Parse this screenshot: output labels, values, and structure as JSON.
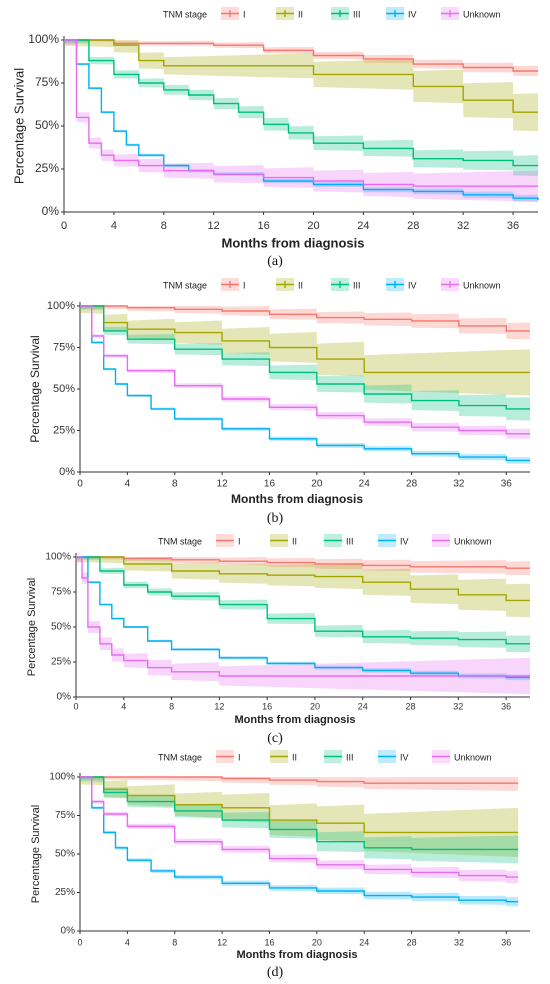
{
  "legend": {
    "title": "TNM stage",
    "items": [
      {
        "label": "I",
        "color": "#f8766d"
      },
      {
        "label": "II",
        "color": "#a3a500"
      },
      {
        "label": "III",
        "color": "#00bf7d"
      },
      {
        "label": "IV",
        "color": "#00b0f6"
      },
      {
        "label": "Unknown",
        "color": "#e76bf3"
      }
    ]
  },
  "chart_data": [
    {
      "type": "line",
      "panel_label": "(a)",
      "xlabel": "Months from diagnosis",
      "ylabel": "Percentage Survival",
      "xlim": [
        0,
        38
      ],
      "ylim": [
        0,
        100
      ],
      "xticks": [
        0,
        4,
        8,
        12,
        16,
        20,
        24,
        28,
        32,
        36
      ],
      "yticks": [
        "0%",
        "25%",
        "50%",
        "75%",
        "100%"
      ],
      "series": [
        {
          "name": "I",
          "x": [
            0,
            4,
            8,
            12,
            16,
            20,
            24,
            28,
            32,
            36,
            38
          ],
          "y": [
            100,
            98,
            98,
            97,
            94,
            91,
            89,
            86,
            84,
            82,
            82
          ],
          "ci_width": 3
        },
        {
          "name": "II",
          "x": [
            0,
            4,
            6,
            8,
            12,
            16,
            20,
            24,
            28,
            32,
            36,
            38
          ],
          "y": [
            100,
            97,
            88,
            85,
            85,
            85,
            80,
            80,
            73,
            65,
            58,
            58
          ],
          "ci_width": 11
        },
        {
          "name": "III",
          "x": [
            0,
            2,
            4,
            6,
            8,
            10,
            12,
            14,
            16,
            18,
            20,
            24,
            28,
            32,
            36,
            38
          ],
          "y": [
            100,
            88,
            80,
            75,
            71,
            68,
            63,
            58,
            51,
            46,
            40,
            37,
            31,
            30,
            27,
            27
          ],
          "ci_width": 6
        },
        {
          "name": "IV",
          "x": [
            0,
            1,
            2,
            3,
            4,
            5,
            6,
            8,
            10,
            12,
            16,
            20,
            24,
            28,
            32,
            36,
            38
          ],
          "y": [
            100,
            86,
            72,
            58,
            47,
            39,
            33,
            27,
            24,
            22,
            18,
            16,
            13,
            12,
            10,
            8,
            7
          ],
          "ci_width": 2
        },
        {
          "name": "Unknown",
          "x": [
            0,
            1,
            2,
            3,
            4,
            6,
            8,
            12,
            16,
            20,
            24,
            28,
            32,
            36,
            38
          ],
          "y": [
            100,
            55,
            40,
            33,
            30,
            27,
            24,
            22,
            20,
            18,
            16,
            15,
            15,
            15,
            15
          ],
          "ci_width": 9
        }
      ]
    },
    {
      "type": "line",
      "panel_label": "(b)",
      "xlabel": "Months from diagnosis",
      "ylabel": "Percentage Survival",
      "xlim": [
        0,
        38
      ],
      "ylim": [
        0,
        100
      ],
      "xticks": [
        0,
        4,
        8,
        12,
        16,
        20,
        24,
        28,
        32,
        36
      ],
      "yticks": [
        "0%",
        "25%",
        "50%",
        "75%",
        "100%"
      ],
      "series": [
        {
          "name": "I",
          "x": [
            0,
            4,
            8,
            12,
            16,
            20,
            24,
            28,
            32,
            36,
            38
          ],
          "y": [
            100,
            99,
            98,
            97,
            95,
            93,
            92,
            91,
            88,
            85,
            85
          ],
          "ci_width": 5
        },
        {
          "name": "II",
          "x": [
            0,
            2,
            4,
            8,
            12,
            16,
            20,
            24,
            28,
            32,
            36,
            38
          ],
          "y": [
            100,
            90,
            86,
            84,
            79,
            75,
            68,
            60,
            60,
            60,
            60,
            60
          ],
          "ci_width": 14
        },
        {
          "name": "III",
          "x": [
            0,
            2,
            4,
            8,
            12,
            16,
            20,
            24,
            28,
            32,
            36,
            38
          ],
          "y": [
            100,
            85,
            80,
            74,
            68,
            60,
            53,
            47,
            43,
            40,
            38,
            38
          ],
          "ci_width": 7
        },
        {
          "name": "IV",
          "x": [
            0,
            1,
            2,
            3,
            4,
            6,
            8,
            12,
            16,
            20,
            24,
            28,
            32,
            36,
            38
          ],
          "y": [
            100,
            78,
            62,
            53,
            46,
            38,
            32,
            26,
            20,
            16,
            14,
            11,
            9,
            7,
            7
          ],
          "ci_width": 2
        },
        {
          "name": "Unknown",
          "x": [
            0,
            1,
            2,
            4,
            8,
            12,
            16,
            20,
            24,
            28,
            32,
            36,
            38
          ],
          "y": [
            100,
            82,
            70,
            61,
            52,
            44,
            39,
            34,
            30,
            27,
            25,
            23,
            23
          ],
          "ci_width": 3
        }
      ]
    },
    {
      "type": "line",
      "panel_label": "(c)",
      "xlabel": "Months from diagnosis",
      "ylabel": "Percentage Survival",
      "xlim": [
        0,
        38
      ],
      "ylim": [
        0,
        100
      ],
      "xticks": [
        0,
        4,
        8,
        12,
        16,
        20,
        24,
        28,
        32,
        36
      ],
      "yticks": [
        "0%",
        "25%",
        "50%",
        "75%",
        "100%"
      ],
      "series": [
        {
          "name": "I",
          "x": [
            0,
            4,
            8,
            12,
            16,
            20,
            24,
            28,
            32,
            36,
            38
          ],
          "y": [
            100,
            99,
            98,
            97,
            96,
            95,
            94,
            93,
            93,
            92,
            92
          ],
          "ci_width": 5
        },
        {
          "name": "II",
          "x": [
            0,
            4,
            8,
            12,
            16,
            20,
            24,
            28,
            32,
            36,
            38
          ],
          "y": [
            100,
            95,
            90,
            88,
            87,
            86,
            82,
            77,
            73,
            69,
            69
          ],
          "ci_width": 12
        },
        {
          "name": "III",
          "x": [
            0,
            2,
            4,
            6,
            8,
            12,
            16,
            20,
            24,
            28,
            32,
            36,
            38
          ],
          "y": [
            100,
            90,
            80,
            75,
            72,
            66,
            56,
            47,
            43,
            42,
            41,
            38,
            38
          ],
          "ci_width": 6
        },
        {
          "name": "IV",
          "x": [
            0,
            1,
            2,
            3,
            4,
            6,
            8,
            12,
            16,
            20,
            24,
            28,
            32,
            36,
            38
          ],
          "y": [
            100,
            82,
            66,
            56,
            50,
            40,
            34,
            28,
            24,
            21,
            19,
            17,
            15,
            14,
            14
          ],
          "ci_width": 2
        },
        {
          "name": "Unknown",
          "x": [
            0,
            0.5,
            1,
            2,
            3,
            4,
            6,
            8,
            12,
            16,
            20,
            24,
            28,
            32,
            36,
            38
          ],
          "y": [
            100,
            85,
            50,
            38,
            30,
            26,
            21,
            18,
            15,
            15,
            15,
            15,
            15,
            15,
            15,
            15
          ],
          "ci_width": 13
        }
      ]
    },
    {
      "type": "line",
      "panel_label": "(d)",
      "xlabel": "Months from diagnosis",
      "ylabel": "Percentage Survival",
      "xlim": [
        0,
        38
      ],
      "ylim": [
        0,
        100
      ],
      "xticks": [
        0,
        4,
        8,
        12,
        16,
        20,
        24,
        28,
        32,
        36
      ],
      "yticks": [
        "0%",
        "25%",
        "50%",
        "75%",
        "100%"
      ],
      "series": [
        {
          "name": "I",
          "x": [
            0,
            4,
            8,
            12,
            16,
            20,
            24,
            28,
            32,
            36,
            37
          ],
          "y": [
            100,
            100,
            100,
            99,
            98,
            97,
            96,
            96,
            96,
            96,
            96
          ],
          "ci_width": 5
        },
        {
          "name": "II",
          "x": [
            0,
            2,
            4,
            8,
            12,
            16,
            20,
            24,
            28,
            32,
            36,
            37
          ],
          "y": [
            100,
            92,
            88,
            82,
            80,
            72,
            70,
            64,
            64,
            64,
            64,
            64
          ],
          "ci_width": 16
        },
        {
          "name": "III",
          "x": [
            0,
            2,
            4,
            8,
            12,
            16,
            20,
            24,
            28,
            32,
            36,
            37
          ],
          "y": [
            100,
            90,
            84,
            78,
            72,
            66,
            58,
            54,
            53,
            53,
            53,
            53
          ],
          "ci_width": 9
        },
        {
          "name": "IV",
          "x": [
            0,
            1,
            2,
            3,
            4,
            6,
            8,
            12,
            16,
            20,
            24,
            28,
            32,
            36,
            37
          ],
          "y": [
            100,
            80,
            64,
            54,
            46,
            39,
            35,
            31,
            28,
            26,
            23,
            22,
            20,
            19,
            19
          ],
          "ci_width": 3
        },
        {
          "name": "Unknown",
          "x": [
            0,
            1,
            2,
            4,
            8,
            12,
            16,
            20,
            24,
            28,
            32,
            36,
            37
          ],
          "y": [
            100,
            84,
            76,
            68,
            58,
            53,
            47,
            43,
            40,
            38,
            36,
            35,
            35
          ],
          "ci_width": 4
        }
      ]
    }
  ]
}
